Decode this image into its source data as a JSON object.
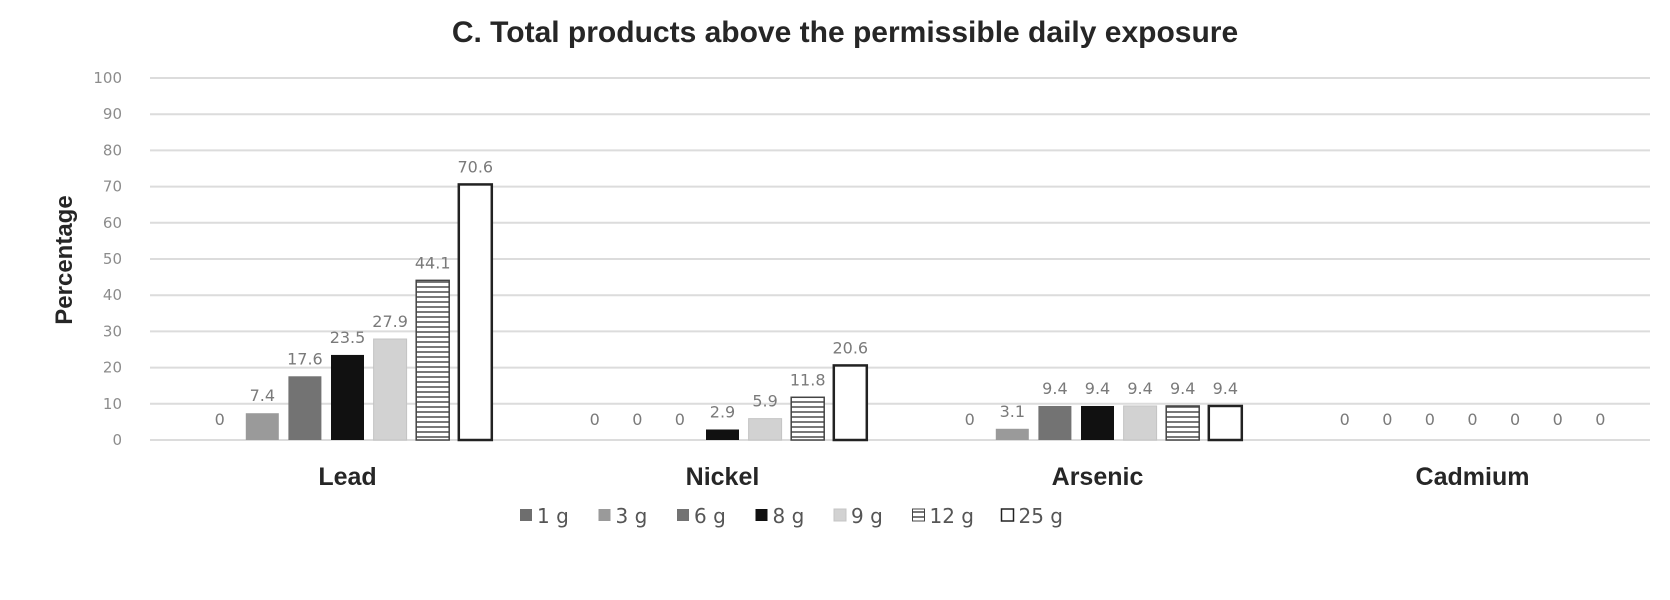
{
  "chart_data": {
    "type": "bar",
    "title": "C. Total products above the permissible daily exposure",
    "ylabel": "Percentage",
    "xlabel": "",
    "ylim": [
      0,
      100
    ],
    "yticks": [
      "0",
      "10",
      "20",
      "30",
      "40",
      "50",
      "60",
      "70",
      "80",
      "90",
      "100"
    ],
    "grid": true,
    "legend_position": "bottom",
    "categories": [
      "Lead",
      "Nickel",
      "Arsenic",
      "Cadmium"
    ],
    "series": [
      {
        "name": "1 g",
        "values": [
          0,
          0,
          0,
          0
        ],
        "labels": [
          "0",
          "0",
          "0",
          "0"
        ],
        "color": "#6e6e6e",
        "pattern": "solid"
      },
      {
        "name": "3 g",
        "values": [
          7.4,
          0,
          3.1,
          0
        ],
        "labels": [
          "7.4",
          "0",
          "3.1",
          "0"
        ],
        "color": "#9a9a9a",
        "pattern": "solid"
      },
      {
        "name": "6 g",
        "values": [
          17.6,
          0,
          9.4,
          0
        ],
        "labels": [
          "17.6",
          "0",
          "9.4",
          "0"
        ],
        "color": "#737373",
        "pattern": "solid"
      },
      {
        "name": "8 g",
        "values": [
          23.5,
          2.9,
          9.4,
          0
        ],
        "labels": [
          "23.5",
          "2.9",
          "9.4",
          "0"
        ],
        "color": "#111111",
        "pattern": "solid"
      },
      {
        "name": "9 g",
        "values": [
          27.9,
          5.9,
          9.4,
          0
        ],
        "labels": [
          "27.9",
          "5.9",
          "9.4",
          "0"
        ],
        "color": "#d2d2d2",
        "pattern": "solid"
      },
      {
        "name": "12 g",
        "values": [
          44.1,
          11.8,
          9.4,
          0
        ],
        "labels": [
          "44.1",
          "11.8",
          "9.4",
          "0"
        ],
        "color": "#ffffff",
        "pattern": "horizontal-lines"
      },
      {
        "name": "25 g",
        "values": [
          70.6,
          20.6,
          9.4,
          0
        ],
        "labels": [
          "70.6",
          "20.6",
          "9.4",
          "0"
        ],
        "color": "#ffffff",
        "pattern": "outline"
      }
    ]
  }
}
